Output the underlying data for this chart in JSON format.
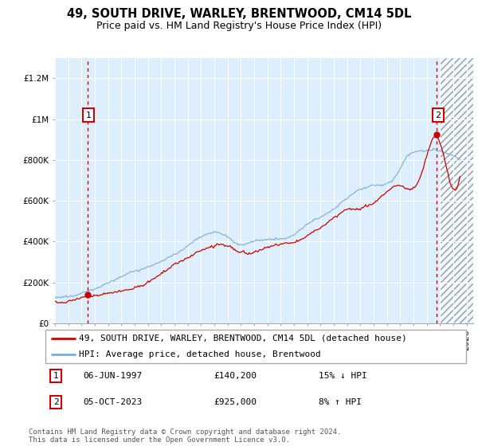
{
  "title": "49, SOUTH DRIVE, WARLEY, BRENTWOOD, CM14 5DL",
  "subtitle": "Price paid vs. HM Land Registry's House Price Index (HPI)",
  "ylabel_ticks": [
    0,
    200000,
    400000,
    600000,
    800000,
    1000000,
    1200000
  ],
  "ylabel_labels": [
    "£0",
    "£200K",
    "£400K",
    "£600K",
    "£800K",
    "£1M",
    "£1.2M"
  ],
  "ylim": [
    0,
    1300000
  ],
  "xmin": 1995.0,
  "xmax": 2026.5,
  "hatch_start": 2024.0,
  "point1_x": 1997.44,
  "point1_y": 140200,
  "point1_label": "1",
  "point2_x": 2023.75,
  "point2_y": 925000,
  "point2_label": "2",
  "line_red_color": "#cc0000",
  "line_blue_color": "#7aaed6",
  "bg_color": "#ddeeff",
  "legend_red_label": "49, SOUTH DRIVE, WARLEY, BRENTWOOD, CM14 5DL (detached house)",
  "legend_blue_label": "HPI: Average price, detached house, Brentwood",
  "annotation1_date": "06-JUN-1997",
  "annotation1_price": "£140,200",
  "annotation1_hpi": "15% ↓ HPI",
  "annotation2_date": "05-OCT-2023",
  "annotation2_price": "£925,000",
  "annotation2_hpi": "8% ↑ HPI",
  "footer": "Contains HM Land Registry data © Crown copyright and database right 2024.\nThis data is licensed under the Open Government Licence v3.0.",
  "title_fontsize": 10.5,
  "subtitle_fontsize": 9,
  "tick_fontsize": 7.5,
  "legend_fontsize": 8,
  "annotation_fontsize": 8,
  "footer_fontsize": 6.5
}
